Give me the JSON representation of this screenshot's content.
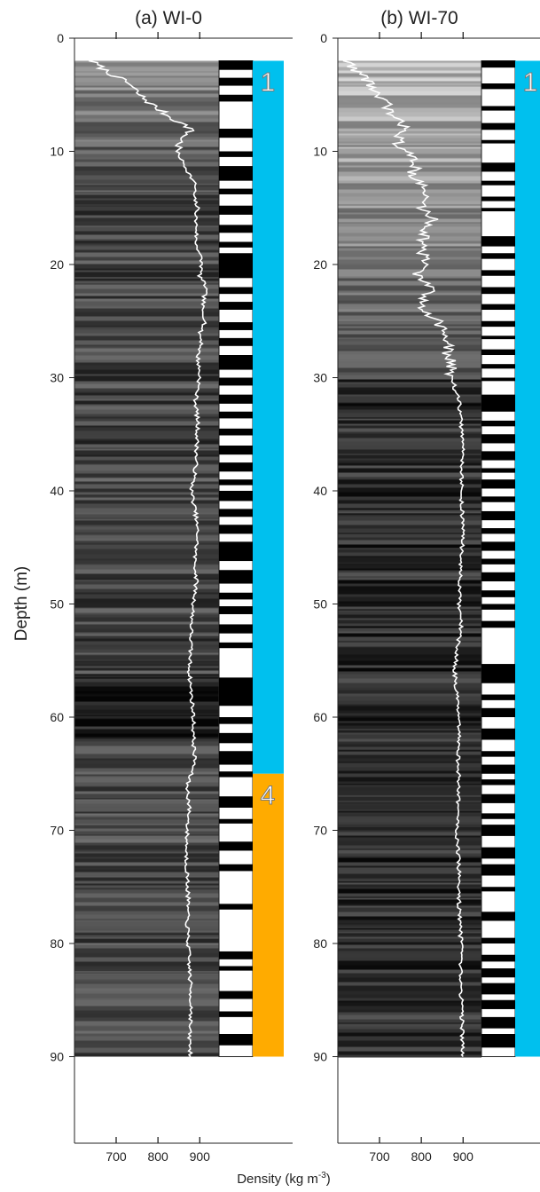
{
  "chart_data": {
    "type": "line",
    "ylabel": "Depth (m)",
    "xlabel_main": "Density (kg m",
    "xlabel_sup": "-3",
    "xlabel_close": ")",
    "y_ticks": [
      "0",
      "10",
      "20",
      "30",
      "40",
      "50",
      "60",
      "70",
      "80",
      "90"
    ],
    "x_ticks": [
      "700",
      "800",
      "900"
    ],
    "ylim": [
      0,
      98
    ],
    "xlim": [
      600,
      950
    ],
    "colors": {
      "cyan": "#00c0ee",
      "orange": "#ffab00",
      "density_line": "#ffffff"
    },
    "panels": [
      {
        "title": "(a) WI-0",
        "image_depth_range": [
          2,
          90
        ],
        "facies": [
          {
            "label": "1",
            "from": 2,
            "to": 65,
            "color": "#00c0ee"
          },
          {
            "label": "4",
            "from": 65,
            "to": 90,
            "color": "#ffab00"
          }
        ],
        "density": {
          "depth": [
            2,
            3,
            4,
            5,
            6,
            7,
            8,
            9,
            10,
            11,
            12,
            13,
            14,
            15,
            16,
            17,
            18,
            19,
            20,
            21,
            22,
            23,
            24,
            25,
            26,
            27,
            28,
            30,
            32,
            34,
            36,
            38,
            40,
            42,
            44,
            46,
            48,
            50,
            52,
            54,
            56,
            58,
            60,
            62,
            64,
            66,
            68,
            70,
            72,
            74,
            76,
            78,
            80,
            82,
            84,
            86,
            88,
            90
          ],
          "values": [
            640,
            680,
            730,
            755,
            790,
            830,
            880,
            855,
            845,
            860,
            875,
            890,
            885,
            895,
            890,
            893,
            890,
            900,
            905,
            900,
            915,
            910,
            905,
            915,
            900,
            905,
            895,
            900,
            890,
            895,
            893,
            890,
            880,
            890,
            895,
            888,
            892,
            885,
            880,
            878,
            875,
            880,
            885,
            885,
            888,
            870,
            875,
            870,
            868,
            870,
            872,
            870,
            872,
            875,
            878,
            880,
            875,
            878
          ]
        },
        "layers": [
          [
            2,
            2.8
          ],
          [
            3.5,
            4.2
          ],
          [
            5,
            5.6
          ],
          [
            8,
            8.8
          ],
          [
            10,
            10.5
          ],
          [
            11.3,
            12.6
          ],
          [
            13.3,
            13.8
          ],
          [
            14.8,
            15.6
          ],
          [
            16.5,
            17.2
          ],
          [
            18,
            18.5
          ],
          [
            19,
            21.2
          ],
          [
            22,
            22.6
          ],
          [
            23.3,
            24
          ],
          [
            25.1,
            25.8
          ],
          [
            26.5,
            27.2
          ],
          [
            28,
            29.3
          ],
          [
            30,
            30.7
          ],
          [
            31.5,
            32.3
          ],
          [
            33,
            33.6
          ],
          [
            34.5,
            35.1
          ],
          [
            36,
            36.8
          ],
          [
            37.5,
            38.3
          ],
          [
            39,
            39.5
          ],
          [
            40,
            40.9
          ],
          [
            41.6,
            42.3
          ],
          [
            43,
            43.8
          ],
          [
            44.5,
            46.2
          ],
          [
            47,
            48.2
          ],
          [
            49,
            49.6
          ],
          [
            50.2,
            50.9
          ],
          [
            51.8,
            52.6
          ],
          [
            53.4,
            53.9
          ],
          [
            56.5,
            59
          ],
          [
            60,
            60.6
          ],
          [
            61.4,
            62.3
          ],
          [
            63,
            64.2
          ],
          [
            64.8,
            65.3
          ],
          [
            67,
            68
          ],
          [
            69,
            69.4
          ],
          [
            71,
            71.8
          ],
          [
            73,
            73.6
          ],
          [
            76.5,
            77
          ],
          [
            80.7,
            81.4
          ],
          [
            82,
            82.4
          ],
          [
            84.2,
            84.9
          ],
          [
            86,
            86.5
          ],
          [
            88,
            89
          ]
        ]
      },
      {
        "title": "(b) WI-70",
        "image_depth_range": [
          2,
          90
        ],
        "facies": [
          {
            "label": "1",
            "from": 2,
            "to": 90,
            "color": "#00c0ee"
          }
        ],
        "density": {
          "depth": [
            2,
            3,
            4,
            5,
            6,
            7,
            8,
            9,
            10,
            11,
            12,
            13,
            14,
            15,
            16,
            17,
            18,
            19,
            20,
            21,
            22,
            23,
            24,
            25,
            26,
            27,
            28,
            29,
            30,
            31,
            32,
            34,
            36,
            38,
            40,
            42,
            44,
            46,
            48,
            50,
            52,
            54,
            56,
            58,
            60,
            62,
            64,
            66,
            68,
            70,
            72,
            74,
            76,
            78,
            80,
            82,
            84,
            86,
            88,
            90
          ],
          "values": [
            620,
            650,
            680,
            690,
            720,
            730,
            770,
            740,
            760,
            790,
            780,
            800,
            810,
            800,
            830,
            810,
            805,
            800,
            815,
            790,
            825,
            800,
            810,
            840,
            855,
            860,
            865,
            870,
            875,
            880,
            890,
            895,
            900,
            898,
            895,
            898,
            900,
            895,
            892,
            890,
            895,
            885,
            880,
            885,
            888,
            890,
            888,
            890,
            888,
            885,
            888,
            890,
            890,
            892,
            895,
            893,
            895,
            897,
            898,
            900
          ]
        },
        "layers": [
          [
            2,
            2.6
          ],
          [
            4,
            4.5
          ],
          [
            6,
            6.4
          ],
          [
            7.5,
            8.1
          ],
          [
            9,
            9.3
          ],
          [
            11,
            11.8
          ],
          [
            12.6,
            13
          ],
          [
            14,
            14.4
          ],
          [
            15,
            15.3
          ],
          [
            17.5,
            18.4
          ],
          [
            19,
            19.5
          ],
          [
            20.5,
            21
          ],
          [
            22,
            22.6
          ],
          [
            23.5,
            24
          ],
          [
            25,
            25.5
          ],
          [
            26.3,
            26.6
          ],
          [
            27.5,
            28
          ],
          [
            28.8,
            29.2
          ],
          [
            30,
            30.3
          ],
          [
            31.5,
            33
          ],
          [
            33.8,
            34.3
          ],
          [
            35,
            35.8
          ],
          [
            36.5,
            37.3
          ],
          [
            38,
            38.4
          ],
          [
            39,
            39.8
          ],
          [
            40.5,
            41
          ],
          [
            41.8,
            42.6
          ],
          [
            43.3,
            43.8
          ],
          [
            44.5,
            45.3
          ],
          [
            46,
            46.5
          ],
          [
            47.2,
            48
          ],
          [
            48.8,
            49.4
          ],
          [
            50,
            50.5
          ],
          [
            51.5,
            52.1
          ],
          [
            55.3,
            57
          ],
          [
            58,
            58.5
          ],
          [
            59.2,
            60
          ],
          [
            61,
            62
          ],
          [
            63,
            63.5
          ],
          [
            64.2,
            65
          ],
          [
            65.5,
            66
          ],
          [
            66.8,
            67.6
          ],
          [
            68.5,
            69
          ],
          [
            69.5,
            70.5
          ],
          [
            71.5,
            72.5
          ],
          [
            73,
            74
          ],
          [
            75,
            75.4
          ],
          [
            77.2,
            78
          ],
          [
            79.5,
            80
          ],
          [
            81,
            81.6
          ],
          [
            82.2,
            83
          ],
          [
            83.5,
            84.5
          ],
          [
            85,
            85.8
          ],
          [
            86.5,
            87.5
          ],
          [
            88,
            89.2
          ]
        ]
      }
    ]
  }
}
